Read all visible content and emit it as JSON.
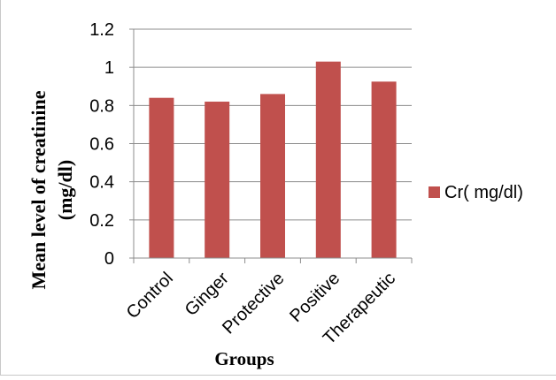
{
  "chart_data": {
    "type": "bar",
    "title": "",
    "xlabel": "Groups",
    "ylabel_line1": "Mean level of creatinine",
    "ylabel_line2": "(mg/dl)",
    "categories": [
      "Control",
      "Ginger",
      "Protective",
      "Positive",
      "Therapeutic"
    ],
    "series": [
      {
        "name": "Cr( mg/dl)",
        "values": [
          0.84,
          0.82,
          0.86,
          1.03,
          0.925
        ],
        "color": "#c0504d"
      }
    ],
    "yticks": [
      "0",
      "0.2",
      "0.4",
      "0.6",
      "0.8",
      "1",
      "1.2"
    ],
    "ylim": [
      0,
      1.2
    ],
    "grid": true,
    "legend": "right"
  }
}
